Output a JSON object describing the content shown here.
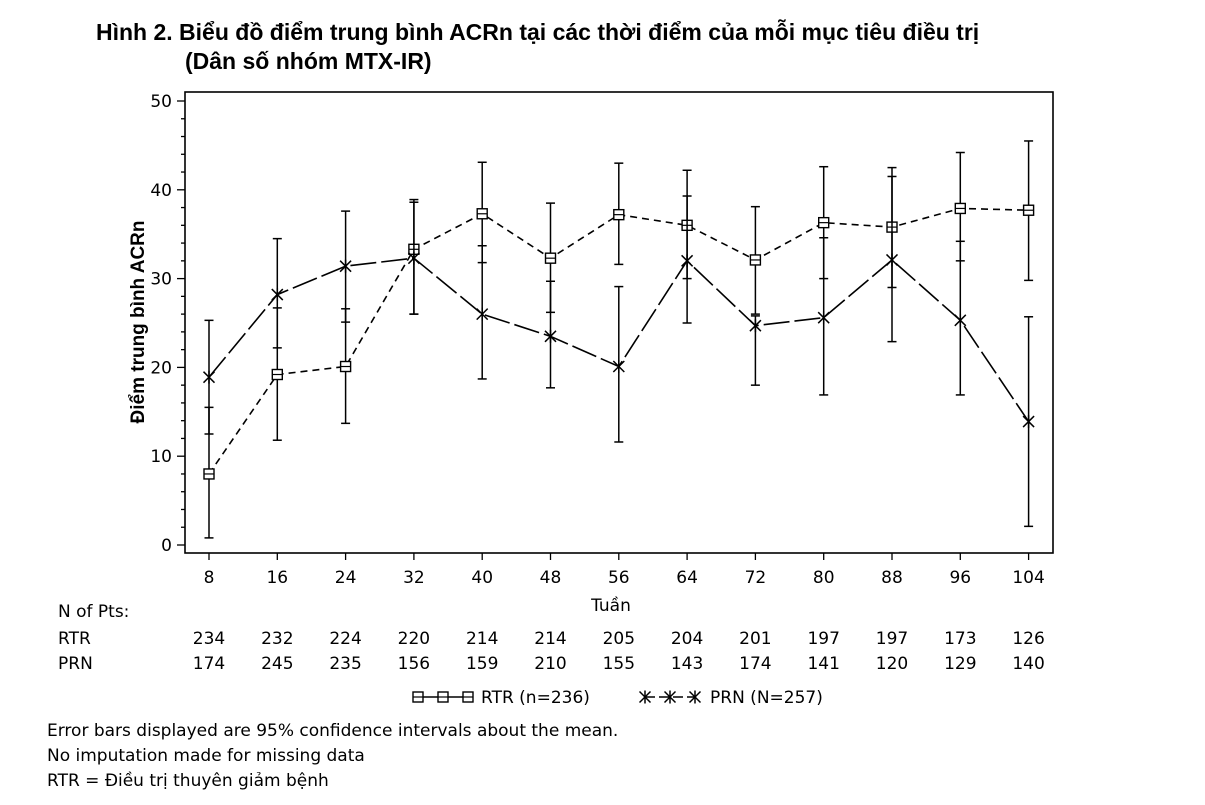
{
  "title": {
    "line1": "Hình 2. Biểu đồ điểm trung bình ACRn tại các thời điểm của mỗi mục tiêu điều trị",
    "line2": "(Dân số nhóm MTX-IR)"
  },
  "chart_data": {
    "type": "line",
    "xlabel": "Tuần",
    "ylabel": "Điểm trung bình ACRn",
    "categories": [
      8,
      16,
      24,
      32,
      40,
      48,
      56,
      64,
      72,
      80,
      88,
      96,
      104
    ],
    "ylim": [
      0,
      50
    ],
    "yticks": [
      0,
      10,
      20,
      30,
      40,
      50
    ],
    "grid": false,
    "legend_position": "bottom",
    "series": [
      {
        "name": "RTR (n=236)",
        "marker": "square",
        "line_style": "short-dash",
        "color": "#000000",
        "values": [
          8.0,
          19.2,
          20.1,
          33.3,
          37.3,
          32.3,
          37.2,
          36.0,
          32.1,
          36.3,
          35.8,
          37.9,
          37.7
        ],
        "ci_low": [
          0.8,
          11.8,
          13.7,
          26.0,
          31.8,
          26.2,
          31.6,
          30.0,
          26.0,
          30.0,
          29.0,
          32.0,
          29.8
        ],
        "ci_high": [
          15.5,
          26.7,
          26.6,
          38.6,
          43.1,
          38.5,
          43.0,
          42.2,
          38.1,
          42.6,
          42.5,
          44.2,
          45.5
        ]
      },
      {
        "name": "PRN (N=257)",
        "marker": "asterisk",
        "line_style": "long-dash",
        "color": "#000000",
        "values": [
          18.9,
          28.2,
          31.4,
          32.3,
          26.0,
          23.5,
          20.1,
          32.0,
          24.7,
          25.6,
          32.1,
          25.3,
          13.9
        ],
        "ci_low": [
          12.5,
          22.2,
          25.1,
          26.0,
          18.7,
          17.7,
          11.6,
          25.0,
          18.0,
          16.9,
          22.9,
          16.9,
          2.1
        ],
        "ci_high": [
          25.3,
          34.5,
          37.6,
          38.9,
          33.7,
          29.7,
          29.1,
          39.3,
          25.8,
          34.6,
          41.5,
          34.2,
          25.7
        ]
      }
    ]
  },
  "n_of_pts": {
    "heading": "N of Pts:",
    "rows": [
      {
        "label": "RTR",
        "values": [
          "234",
          "232",
          "224",
          "220",
          "214",
          "214",
          "205",
          "204",
          "201",
          "197",
          "197",
          "173",
          "126"
        ]
      },
      {
        "label": "PRN",
        "values": [
          "174",
          "245",
          "235",
          "156",
          "159",
          "210",
          "155",
          "143",
          "174",
          "141",
          "120",
          "129",
          "140"
        ]
      }
    ]
  },
  "legend": {
    "rtr_label": "RTR (n=236)",
    "prn_label": "PRN (N=257)"
  },
  "notes": [
    "Error bars displayed are 95% confidence intervals about the mean.",
    "No imputation made for missing data",
    "RTR = Điều trị thuyên giảm bệnh"
  ]
}
